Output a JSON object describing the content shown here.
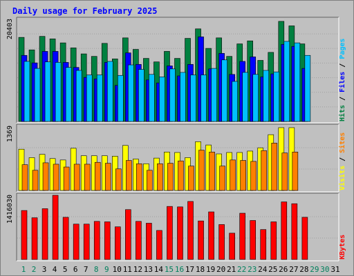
{
  "chart_data": {
    "type": "bar",
    "title": "Daily usage for February 2025",
    "days": [
      "1",
      "2",
      "3",
      "4",
      "5",
      "6",
      "7",
      "8",
      "9",
      "10",
      "11",
      "12",
      "13",
      "14",
      "15",
      "16",
      "17",
      "18",
      "19",
      "20",
      "21",
      "22",
      "23",
      "24",
      "25",
      "26",
      "27",
      "28",
      "29",
      "30",
      "31"
    ],
    "panels": [
      {
        "name": "hits-files-pages",
        "ymax_label": "20403",
        "ymax": 20403,
        "right_label": [
          "Pages",
          " / ",
          "Files",
          " / ",
          "Hits"
        ],
        "series": [
          {
            "name": "Hits",
            "color": "#008040",
            "values": [
              16800,
              14300,
              17000,
              16500,
              15700,
              14700,
              13500,
              13000,
              15600,
              12500,
              16700,
              14400,
              12600,
              11900,
              14000,
              12600,
              16600,
              18500,
              14600,
              16700,
              13000,
              15500,
              16100,
              12200,
              13800,
              20000,
              19100,
              15500,
              null,
              null,
              null
            ]
          },
          {
            "name": "Files",
            "color": "#0000ff",
            "values": [
              13200,
              11700,
              14000,
              14000,
              11800,
              10800,
              8800,
              8500,
              11800,
              7200,
              13700,
              11400,
              8300,
              7700,
              11100,
              9100,
              11400,
              16900,
              10500,
              13600,
              9400,
              12000,
              12900,
              8900,
              9500,
              15400,
              15000,
              10600,
              null,
              null,
              null
            ]
          },
          {
            "name": "Pages",
            "color": "#00c0ff",
            "values": [
              12000,
              10600,
              11900,
              11800,
              10800,
              10200,
              9300,
              9300,
              12000,
              9200,
              11300,
              10400,
              9400,
              8900,
              10500,
              9800,
              9300,
              9300,
              10600,
              12300,
              8000,
              9800,
              9400,
              10200,
              9900,
              16000,
              15700,
              13200,
              null,
              null,
              null
            ]
          }
        ]
      },
      {
        "name": "visits-sites",
        "ymax_label": "1369",
        "ymax": 1369,
        "right_label": [
          "Sites",
          " / ",
          "Visits"
        ],
        "series": [
          {
            "name": "Visits",
            "color": "#ffff00",
            "values": [
              880,
              700,
              770,
              680,
              650,
              900,
              740,
              740,
              740,
              730,
              960,
              670,
              570,
              690,
              820,
              810,
              700,
              1040,
              970,
              780,
              810,
              810,
              840,
              910,
              1190,
              1340,
              1340,
              null,
              null,
              null,
              null
            ]
          },
          {
            "name": "Sites",
            "color": "#ff8000",
            "values": [
              550,
              430,
              590,
              560,
              500,
              560,
              560,
              600,
              580,
              460,
              640,
              570,
              430,
              570,
              580,
              630,
              520,
              860,
              820,
              520,
              650,
              640,
              620,
              850,
              1010,
              800,
              820,
              null,
              null,
              null,
              null
            ]
          }
        ]
      },
      {
        "name": "kbytes",
        "ymax_label": "1416030",
        "ymax": 1416030,
        "right_label": [
          "KBytes"
        ],
        "series": [
          {
            "name": "KBytes",
            "color": "#ff0000",
            "values": [
              1080000,
              920000,
              1120000,
              1416030,
              930000,
              780000,
              780000,
              840000,
              830000,
              720000,
              1100000,
              840000,
              800000,
              640000,
              1170000,
              1160000,
              1280000,
              850000,
              1050000,
              770000,
              580000,
              1020000,
              860000,
              660000,
              830000,
              1270000,
              1230000,
              930000,
              null,
              null,
              null
            ]
          }
        ]
      }
    ]
  },
  "colors": {
    "title": "#0000ff",
    "weekend_label": "#00805c",
    "weekday_label": "#000000",
    "frame": "#c0c0c0",
    "plot_bg": "#c0c0c0"
  },
  "weekend_days": [
    "1",
    "2",
    "8",
    "9",
    "15",
    "16",
    "22",
    "23",
    "29",
    "30"
  ]
}
